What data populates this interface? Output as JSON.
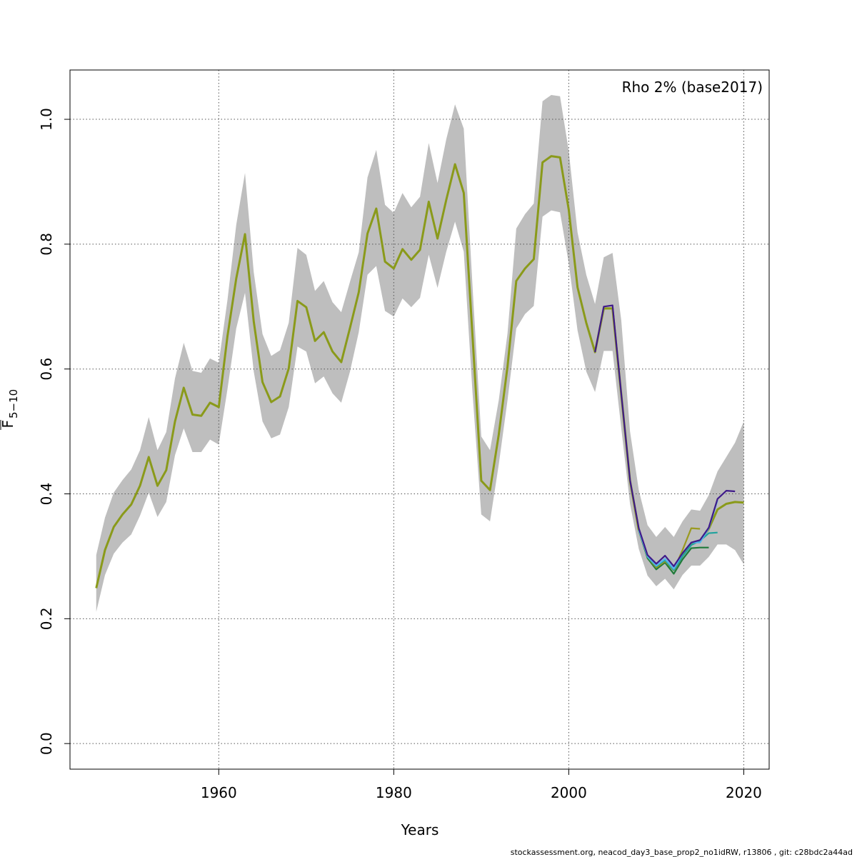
{
  "chart_data": {
    "type": "line",
    "annotation": "Rho 2% (base2017)",
    "x_label": "Years",
    "y_label": {
      "main": "F",
      "sub": "5−10"
    },
    "footer": "stockassessment.org, neacod_day3_base_prop2_no1idRW, r13806 , git: c28bdc2a44ad",
    "xlim": [
      1943.0,
      2022.9
    ],
    "ylim": [
      -0.041,
      1.079
    ],
    "xticks": [
      1960,
      1980,
      2000,
      2020
    ],
    "yticks": [
      {
        "value": 0,
        "label": "0.0"
      },
      0.2,
      0.4,
      0.6,
      0.8,
      {
        "value": 1,
        "label": "1.0"
      }
    ],
    "grid": true,
    "band": {
      "color": "#bebebe",
      "x": [
        1946,
        1947,
        1948,
        1949,
        1950,
        1951,
        1952,
        1953,
        1954,
        1955,
        1956,
        1957,
        1958,
        1959,
        1960,
        1961,
        1962,
        1963,
        1964,
        1965,
        1966,
        1967,
        1968,
        1969,
        1970,
        1971,
        1972,
        1973,
        1974,
        1975,
        1976,
        1977,
        1978,
        1979,
        1980,
        1981,
        1982,
        1983,
        1984,
        1985,
        1986,
        1987,
        1988,
        1989,
        1990,
        1991,
        1992,
        1993,
        1994,
        1995,
        1996,
        1997,
        1998,
        1999,
        2000,
        2001,
        2002,
        2003,
        2004,
        2005,
        2006,
        2007,
        2008,
        2009,
        2010,
        2011,
        2012,
        2013,
        2014,
        2015,
        2016,
        2017,
        2018,
        2019,
        2020
      ],
      "upper": [
        0.302,
        0.362,
        0.402,
        0.422,
        0.439,
        0.47,
        0.523,
        0.47,
        0.499,
        0.585,
        0.642,
        0.597,
        0.594,
        0.617,
        0.61,
        0.711,
        0.831,
        0.914,
        0.755,
        0.656,
        0.621,
        0.63,
        0.674,
        0.794,
        0.783,
        0.725,
        0.741,
        0.707,
        0.691,
        0.74,
        0.787,
        0.907,
        0.951,
        0.863,
        0.85,
        0.882,
        0.859,
        0.876,
        0.962,
        0.898,
        0.968,
        1.024,
        0.985,
        0.733,
        0.492,
        0.47,
        0.55,
        0.657,
        0.825,
        0.848,
        0.865,
        1.029,
        1.039,
        1.037,
        0.949,
        0.819,
        0.751,
        0.704,
        0.779,
        0.786,
        0.678,
        0.5,
        0.406,
        0.35,
        0.331,
        0.347,
        0.331,
        0.356,
        0.375,
        0.373,
        0.398,
        0.436,
        0.459,
        0.482,
        0.516
      ],
      "lower": [
        0.211,
        0.27,
        0.304,
        0.322,
        0.335,
        0.365,
        0.402,
        0.363,
        0.387,
        0.462,
        0.505,
        0.467,
        0.467,
        0.487,
        0.479,
        0.568,
        0.665,
        0.722,
        0.596,
        0.516,
        0.489,
        0.495,
        0.539,
        0.636,
        0.628,
        0.577,
        0.588,
        0.561,
        0.546,
        0.596,
        0.659,
        0.751,
        0.765,
        0.693,
        0.684,
        0.713,
        0.699,
        0.714,
        0.783,
        0.73,
        0.788,
        0.836,
        0.788,
        0.562,
        0.367,
        0.356,
        0.447,
        0.55,
        0.665,
        0.688,
        0.701,
        0.844,
        0.854,
        0.851,
        0.769,
        0.662,
        0.596,
        0.563,
        0.629,
        0.629,
        0.505,
        0.384,
        0.312,
        0.269,
        0.252,
        0.264,
        0.247,
        0.27,
        0.285,
        0.285,
        0.299,
        0.319,
        0.319,
        0.31,
        0.287
      ]
    },
    "series": [
      {
        "color": "#8a9a1a",
        "x": [
          1946,
          1947,
          1948,
          1949,
          1950,
          1951,
          1952,
          1953,
          1954,
          1955,
          1956,
          1957,
          1958,
          1959,
          1960,
          1961,
          1962,
          1963,
          1964,
          1965,
          1966,
          1967,
          1968,
          1969,
          1970,
          1971,
          1972,
          1973,
          1974,
          1975,
          1976,
          1977,
          1978,
          1979,
          1980,
          1981,
          1982,
          1983,
          1984,
          1985,
          1986,
          1987,
          1988,
          1989,
          1990,
          1991,
          1992,
          1993,
          1994,
          1995,
          1996,
          1997,
          1998,
          1999,
          2000,
          2001,
          2002,
          2003,
          2004,
          2005,
          2006,
          2007,
          2008,
          2009,
          2010,
          2011,
          2012,
          2013,
          2014,
          2015,
          2016,
          2017,
          2018,
          2019,
          2020
        ],
        "values": [
          0.249,
          0.31,
          0.347,
          0.367,
          0.383,
          0.413,
          0.459,
          0.413,
          0.438,
          0.516,
          0.57,
          0.527,
          0.525,
          0.546,
          0.539,
          0.653,
          0.745,
          0.816,
          0.676,
          0.579,
          0.547,
          0.556,
          0.601,
          0.709,
          0.699,
          0.645,
          0.659,
          0.628,
          0.611,
          0.666,
          0.723,
          0.817,
          0.857,
          0.772,
          0.761,
          0.792,
          0.775,
          0.791,
          0.868,
          0.809,
          0.871,
          0.928,
          0.882,
          0.653,
          0.421,
          0.406,
          0.495,
          0.604,
          0.741,
          0.761,
          0.776,
          0.931,
          0.941,
          0.939,
          0.855,
          0.731,
          0.674,
          0.627,
          0.697,
          0.697,
          0.559,
          0.421,
          0.342,
          0.299,
          0.284,
          0.294,
          0.278,
          0.301,
          0.319,
          0.325,
          0.344,
          0.375,
          0.384,
          0.387,
          0.386
        ]
      },
      {
        "color": "#1f7a3a",
        "x": [
          2008,
          2009,
          2010,
          2011,
          2012,
          2013,
          2014,
          2015,
          2016
        ],
        "values": [
          0.342,
          0.297,
          0.279,
          0.29,
          0.272,
          0.295,
          0.313,
          0.314,
          0.314
        ]
      },
      {
        "color": "#9a9a20",
        "x": [
          2008,
          2009,
          2010,
          2011,
          2012,
          2013,
          2014,
          2015
        ],
        "values": [
          0.342,
          0.299,
          0.282,
          0.292,
          0.278,
          0.31,
          0.345,
          0.344
        ]
      },
      {
        "color": "#20a39e",
        "x": [
          2008,
          2009,
          2010,
          2011,
          2012,
          2013,
          2014,
          2015,
          2016,
          2017
        ],
        "values": [
          0.342,
          0.299,
          0.284,
          0.294,
          0.278,
          0.3,
          0.318,
          0.325,
          0.337,
          0.338
        ]
      },
      {
        "color": "#56b4e9",
        "x": [
          2008,
          2009,
          2010,
          2011,
          2012,
          2013,
          2014,
          2015,
          2016,
          2017
        ],
        "values": [
          0.342,
          0.3,
          0.285,
          0.296,
          0.28,
          0.305,
          0.322,
          0.322,
          0.345,
          0.39
        ]
      },
      {
        "color": "#3f1a8a",
        "x": [
          2003,
          2004,
          2005,
          2006,
          2007,
          2008,
          2009,
          2010,
          2011,
          2012,
          2013,
          2014,
          2015,
          2016,
          2017,
          2018,
          2019
        ],
        "values": [
          0.627,
          0.7,
          0.702,
          0.56,
          0.422,
          0.345,
          0.302,
          0.288,
          0.301,
          0.284,
          0.305,
          0.322,
          0.326,
          0.346,
          0.392,
          0.405,
          0.404
        ]
      }
    ]
  }
}
